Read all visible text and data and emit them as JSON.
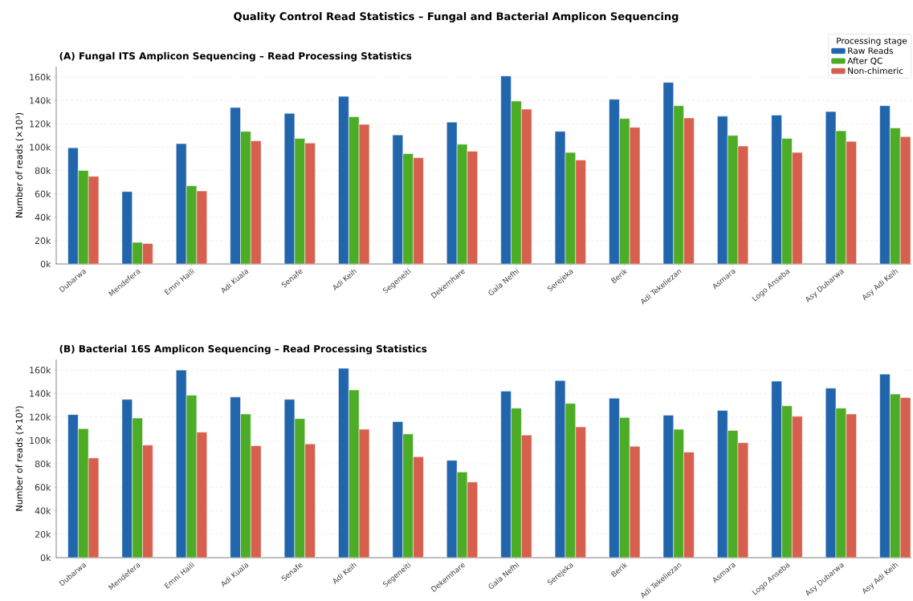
{
  "chart_data": [
    {
      "type": "bar",
      "title": "Quality Control Read Statistics – Fungal and Bacterial Amplicon Sequencing",
      "subtitle": "(A)  Fungal ITS Amplicon Sequencing – Read Processing Statistics",
      "ylabel": "Number of reads (×10³)",
      "legend_title": "Processing stage",
      "legend": "top right",
      "grid": "y",
      "categories": [
        "Dubarwa",
        "Mendefera",
        "Emni Haili",
        "Adi Kuala",
        "Senafe",
        "Adi Keih",
        "Segeneiti",
        "Dekemhare",
        "Gala Nefhi",
        "Serejeka",
        "Berik",
        "Adi Tekeliezan",
        "Asmara",
        "Logo Anseba",
        "Asy Dubarwa",
        "Asy Adi Keih"
      ],
      "ylim": [
        0,
        169
      ],
      "yticks": [
        {
          "value": 0,
          "label": "0k"
        },
        {
          "value": 20,
          "label": "20k"
        },
        {
          "value": 40,
          "label": "40k"
        },
        {
          "value": 60,
          "label": "60k"
        },
        {
          "value": 80,
          "label": "80k"
        },
        {
          "value": 100,
          "label": "100k"
        },
        {
          "value": 120,
          "label": "120k"
        },
        {
          "value": 140,
          "label": "140k"
        },
        {
          "value": 160,
          "label": "160k"
        }
      ],
      "series": [
        {
          "name": "Raw Reads",
          "color": "#2166ac",
          "values": [
            99.5,
            62,
            103,
            134,
            129,
            143.5,
            110.5,
            121.5,
            161,
            113.5,
            141,
            155.5,
            126.5,
            127.5,
            130.5,
            135.5
          ]
        },
        {
          "name": "After QC",
          "color": "#4dac26",
          "values": [
            80,
            18.5,
            67,
            113.5,
            107.5,
            126,
            94.5,
            102.5,
            139.5,
            95.5,
            124.5,
            135.5,
            110,
            107.5,
            114,
            116.5
          ]
        },
        {
          "name": "Non-chimeric",
          "color": "#d6604d",
          "values": [
            75,
            17.5,
            62.5,
            105.5,
            103.5,
            119.5,
            91,
            96.5,
            132.5,
            89,
            117,
            125,
            101,
            95.5,
            105,
            109
          ]
        }
      ]
    },
    {
      "type": "bar",
      "subtitle": "(B)  Bacterial 16S Amplicon Sequencing – Read Processing Statistics",
      "ylabel": "Number of reads (×10³)",
      "grid": "y",
      "categories": [
        "Dubarwa",
        "Mendefera",
        "Emni Haili",
        "Adi Kuala",
        "Senafe",
        "Adi Keih",
        "Segeneiti",
        "Dekemhare",
        "Gala Nefhi",
        "Serejeka",
        "Berik",
        "Adi Tekeliezan",
        "Asmara",
        "Logo Anseba",
        "Asy Dubarwa",
        "Asy Adi Keih"
      ],
      "ylim": [
        0,
        169
      ],
      "yticks": [
        {
          "value": 0,
          "label": "0k"
        },
        {
          "value": 20,
          "label": "20k"
        },
        {
          "value": 40,
          "label": "40k"
        },
        {
          "value": 60,
          "label": "60k"
        },
        {
          "value": 80,
          "label": "80k"
        },
        {
          "value": 100,
          "label": "100k"
        },
        {
          "value": 120,
          "label": "120k"
        },
        {
          "value": 140,
          "label": "140k"
        },
        {
          "value": 160,
          "label": "160k"
        }
      ],
      "series": [
        {
          "color": "#2166ac",
          "values": [
            122,
            135,
            160,
            137,
            135,
            161.5,
            116,
            83,
            142,
            151,
            136,
            121.5,
            125.5,
            150.5,
            144.5,
            156.5
          ]
        },
        {
          "color": "#4dac26",
          "values": [
            110,
            119,
            138.5,
            122.5,
            118.5,
            143,
            105.5,
            73,
            127.5,
            131.5,
            119.5,
            109.5,
            108.5,
            129.5,
            127.5,
            139.5
          ]
        },
        {
          "color": "#d6604d",
          "values": [
            85,
            96,
            107,
            95.5,
            97,
            109.5,
            86,
            64.5,
            104.5,
            111.5,
            95,
            90,
            98,
            120.5,
            122.5,
            136.5
          ]
        }
      ]
    }
  ]
}
